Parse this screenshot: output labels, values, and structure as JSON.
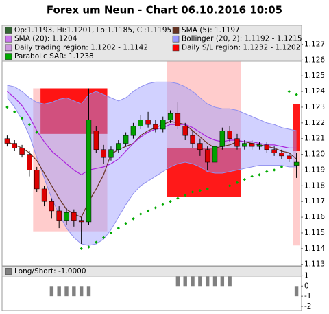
{
  "chart_data": {
    "type": "candlestick",
    "title": "Forex um Neun - Chart 06.10.2016 10:05",
    "ohlc": {
      "name": "Op:1.1193, Hi:1.1201, Lo:1.1185, Cl:1.1195",
      "color": "#336633",
      "up_color": "#00a000",
      "down_color": "#dd0000",
      "open": [
        1.121,
        1.1207,
        1.1204,
        1.12,
        1.119,
        1.1178,
        1.117,
        1.1164,
        1.1158,
        1.1163,
        1.1158,
        1.1157,
        1.1215,
        1.1203,
        1.1198,
        1.1203,
        1.1207,
        1.1212,
        1.1218,
        1.1222,
        1.1219,
        1.1216,
        1.1222,
        1.1226,
        1.1218,
        1.1212,
        1.1207,
        1.1203,
        1.1195,
        1.1205,
        1.1215,
        1.121,
        1.1205,
        1.1207,
        1.1205,
        1.1206,
        1.1203,
        1.1201,
        1.1199,
        1.1193
      ],
      "high": [
        1.1212,
        1.1209,
        1.1206,
        1.1202,
        1.1192,
        1.118,
        1.1172,
        1.1167,
        1.1166,
        1.1165,
        1.116,
        1.1242,
        1.1218,
        1.1206,
        1.1205,
        1.1209,
        1.1214,
        1.122,
        1.1225,
        1.1227,
        1.1222,
        1.1224,
        1.1228,
        1.1233,
        1.122,
        1.1215,
        1.121,
        1.1205,
        1.1207,
        1.1217,
        1.1218,
        1.1213,
        1.1209,
        1.1209,
        1.1208,
        1.1208,
        1.1205,
        1.1203,
        1.1201,
        1.1201
      ],
      "low": [
        1.1205,
        1.1202,
        1.1198,
        1.1186,
        1.1176,
        1.1167,
        1.1159,
        1.1153,
        1.1155,
        1.1154,
        1.1143,
        1.1155,
        1.1201,
        1.1194,
        1.1196,
        1.1201,
        1.1205,
        1.121,
        1.1216,
        1.1217,
        1.1214,
        1.1214,
        1.122,
        1.1216,
        1.1209,
        1.1204,
        1.1199,
        1.119,
        1.1193,
        1.1203,
        1.1208,
        1.1203,
        1.1203,
        1.1203,
        1.1203,
        1.1201,
        1.1199,
        1.1197,
        1.1195,
        1.1185
      ],
      "close": [
        1.1207,
        1.1204,
        1.12,
        1.119,
        1.1178,
        1.117,
        1.1164,
        1.1158,
        1.1163,
        1.1158,
        1.1157,
        1.1222,
        1.1203,
        1.1198,
        1.1203,
        1.1207,
        1.1212,
        1.1218,
        1.1222,
        1.1219,
        1.1216,
        1.1222,
        1.1226,
        1.1218,
        1.1212,
        1.1207,
        1.1203,
        1.1195,
        1.1205,
        1.1215,
        1.121,
        1.1205,
        1.1207,
        1.1205,
        1.1206,
        1.1203,
        1.1201,
        1.1199,
        1.1197,
        1.1195
      ]
    },
    "series": [
      {
        "name": "SMA (5): 1.1197",
        "color": "#663322",
        "values": [
          1.1208,
          1.1206,
          1.1204,
          1.1201,
          1.1196,
          1.1188,
          1.118,
          1.1172,
          1.1165,
          1.1162,
          1.116,
          1.117,
          1.1178,
          1.1187,
          1.12,
          1.1203,
          1.1205,
          1.1207,
          1.1212,
          1.1215,
          1.1217,
          1.1219,
          1.1221,
          1.122,
          1.1219,
          1.1215,
          1.1211,
          1.1207,
          1.1204,
          1.1205,
          1.1206,
          1.1208,
          1.1208,
          1.1207,
          1.1206,
          1.1205,
          1.1204,
          1.1202,
          1.1201,
          1.1197
        ]
      },
      {
        "name": "SMA (20): 1.1204",
        "color": "#aa22dd",
        "values": [
          1.124,
          1.1236,
          1.1231,
          1.1224,
          1.1215,
          1.1208,
          1.1202,
          1.1198,
          1.1194,
          1.119,
          1.1187,
          1.119,
          1.1191,
          1.1192,
          1.1194,
          1.1197,
          1.1202,
          1.1207,
          1.1211,
          1.1214,
          1.1216,
          1.1217,
          1.1219,
          1.1219,
          1.1219,
          1.1217,
          1.1214,
          1.1211,
          1.1209,
          1.1208,
          1.1209,
          1.1209,
          1.1208,
          1.1208,
          1.1207,
          1.1206,
          1.1206,
          1.1205,
          1.1204,
          1.1204
        ]
      }
    ],
    "band": {
      "name": "Bollinger (20, 2): 1.1192 - 1.1215",
      "color": "#9999ff",
      "upper": [
        1.1244,
        1.1243,
        1.124,
        1.1236,
        1.1233,
        1.1232,
        1.1233,
        1.1235,
        1.1236,
        1.1234,
        1.1232,
        1.1238,
        1.124,
        1.1238,
        1.1236,
        1.1234,
        1.1236,
        1.124,
        1.1243,
        1.1245,
        1.1246,
        1.1246,
        1.1246,
        1.1245,
        1.1243,
        1.124,
        1.1236,
        1.1232,
        1.123,
        1.1229,
        1.1229,
        1.1228,
        1.1226,
        1.1224,
        1.1222,
        1.122,
        1.1219,
        1.1217,
        1.1216,
        1.1215
      ],
      "lower": [
        1.1236,
        1.123,
        1.1222,
        1.1212,
        1.1198,
        1.1185,
        1.1172,
        1.1162,
        1.1153,
        1.1147,
        1.1143,
        1.1142,
        1.1143,
        1.1146,
        1.1152,
        1.116,
        1.1168,
        1.1175,
        1.118,
        1.1183,
        1.1186,
        1.1189,
        1.1192,
        1.1194,
        1.1195,
        1.1194,
        1.1192,
        1.1189,
        1.1188,
        1.1188,
        1.1189,
        1.119,
        1.1191,
        1.1192,
        1.1193,
        1.1193,
        1.1193,
        1.1193,
        1.1192,
        1.1192
      ]
    },
    "regions": [
      {
        "name": "Daily trading region: 1.1202 - 1.1142",
        "color": "#ffcccc",
        "spans": [
          {
            "start": 4,
            "end": 13,
            "high": 1.1242,
            "low": 1.1151
          },
          {
            "start": 22,
            "end": 31,
            "high": 1.1261,
            "low": 1.1204
          },
          {
            "start": 39,
            "end": 39,
            "high": 1.1202,
            "low": 1.1142
          }
        ]
      },
      {
        "name": "Daily S/L region: 1.1232 - 1.1202",
        "color": "#ff0000",
        "spans": [
          {
            "start": 5,
            "end": 13,
            "high": 1.1242,
            "low": 1.1213
          },
          {
            "start": 22,
            "end": 31,
            "high": 1.1204,
            "low": 1.1173
          },
          {
            "start": 39,
            "end": 39,
            "high": 1.1232,
            "low": 1.1202
          }
        ]
      }
    ],
    "sar": {
      "name": "Parabolic SAR: 1.1238",
      "color": "#00aa00",
      "values": [
        1.123,
        1.1227,
        1.1223,
        1.1219,
        1.1214,
        null,
        null,
        null,
        null,
        null,
        1.114,
        1.1141,
        1.1144,
        1.1147,
        1.115,
        1.1153,
        1.1156,
        1.1159,
        1.1162,
        1.1164,
        1.1166,
        1.1168,
        1.117,
        1.1172,
        1.1174,
        1.1176,
        1.1177,
        1.1178,
        null,
        null,
        1.118,
        1.1182,
        1.1184,
        1.1186,
        1.1187,
        1.1189,
        1.119,
        1.1192,
        1.124,
        1.1238
      ]
    },
    "ylim": [
      1.1129,
      1.1282
    ],
    "yticks": [
      1.113,
      1.114,
      1.115,
      1.116,
      1.117,
      1.118,
      1.119,
      {
        "value": 1.12,
        "label": "1.120"
      },
      1.121,
      1.122,
      1.123,
      1.124,
      1.125,
      1.126,
      1.127
    ],
    "lower_panel": {
      "type": "bar",
      "series": [
        {
          "name": "Long/Short: -1.0000",
          "color": "#808080",
          "values": [
            0,
            0,
            0,
            0,
            0,
            0,
            -1,
            -1,
            -1,
            -1,
            -1,
            -1,
            0,
            0,
            0,
            0,
            0,
            0,
            0,
            0,
            0,
            0,
            0,
            1,
            1,
            1,
            1,
            1,
            1,
            1,
            1,
            0,
            0,
            0,
            0,
            0,
            0,
            0,
            0,
            -1
          ]
        }
      ],
      "ylim": [
        -2.4,
        1.9
      ],
      "yticks": [
        -2,
        -1,
        0,
        1
      ]
    }
  }
}
